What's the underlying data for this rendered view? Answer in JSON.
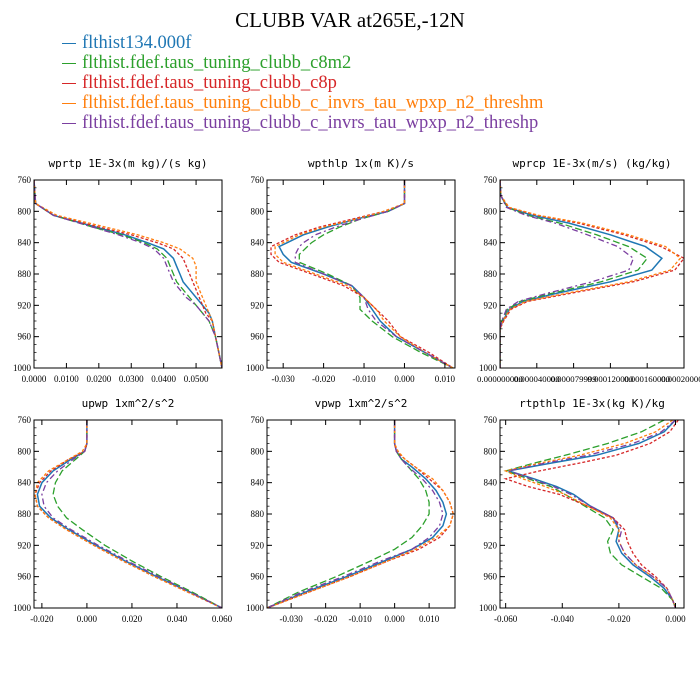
{
  "header": {
    "title": "CLUBB VAR at265E,-12N"
  },
  "legend": [
    {
      "label": "flthist134.000f",
      "color": "#1f77b4"
    },
    {
      "label": "flthist.fdef.taus_tuning_clubb_c8m2",
      "color": "#2ca02c"
    },
    {
      "label": "flthist.fdef.taus_tuning_clubb_c8p",
      "color": "#d62728"
    },
    {
      "label": "flthist.fdef.taus_tuning_clubb_c_invrs_tau_wpxp_n2_threshm",
      "color": "#ff7f0e"
    },
    {
      "label": "flthist.fdef.taus_tuning_clubb_c_invrs_tau_wpxp_n2_threshp",
      "color": "#7b3fa0"
    }
  ],
  "chart_data": [
    {
      "type": "line",
      "title": "wprtp  1E-3x(m kg)/(s kg)",
      "xlim": [
        0.0,
        0.058
      ],
      "ylim": [
        760,
        1000
      ],
      "y_inverted": true,
      "xticks": [
        "0.0000",
        "0.0100",
        "0.0200",
        "0.0300",
        "0.0400",
        "0.0500"
      ],
      "xtick_values": [
        0,
        0.01,
        0.02,
        0.03,
        0.04,
        0.05
      ],
      "yticks": [
        "760",
        "800",
        "840",
        "880",
        "920",
        "960",
        "1000"
      ],
      "y": [
        760,
        790,
        805,
        820,
        830,
        840,
        848,
        860,
        870,
        880,
        890,
        900,
        910,
        920,
        930,
        940,
        960,
        980,
        1000
      ],
      "series": [
        {
          "values": [
            0,
            0.0005,
            0.006,
            0.019,
            0.028,
            0.035,
            0.04,
            0.043,
            0.044,
            0.045,
            0.046,
            0.048,
            0.05,
            0.052,
            0.054,
            0.055,
            0.056,
            0.057,
            0.058
          ]
        },
        {
          "values": [
            0,
            0.0005,
            0.006,
            0.018,
            0.027,
            0.034,
            0.038,
            0.041,
            0.042,
            0.043,
            0.044,
            0.046,
            0.048,
            0.05,
            0.052,
            0.054,
            0.056,
            0.057,
            0.058
          ]
        },
        {
          "values": [
            0,
            0.0005,
            0.006,
            0.02,
            0.03,
            0.038,
            0.043,
            0.046,
            0.047,
            0.048,
            0.049,
            0.05,
            0.051,
            0.052,
            0.053,
            0.055,
            0.056,
            0.057,
            0.058
          ]
        },
        {
          "values": [
            0,
            0.0005,
            0.007,
            0.022,
            0.032,
            0.04,
            0.045,
            0.049,
            0.05,
            0.05,
            0.05,
            0.051,
            0.052,
            0.053,
            0.054,
            0.055,
            0.056,
            0.057,
            0.058
          ]
        },
        {
          "values": [
            0,
            0.0005,
            0.006,
            0.018,
            0.026,
            0.033,
            0.037,
            0.04,
            0.041,
            0.042,
            0.043,
            0.045,
            0.047,
            0.05,
            0.052,
            0.054,
            0.056,
            0.057,
            0.058
          ]
        }
      ]
    },
    {
      "type": "line",
      "title": "wpthlp  1x(m K)/s",
      "xlim": [
        -0.034,
        0.0125
      ],
      "ylim": [
        760,
        1000
      ],
      "y_inverted": true,
      "xticks": [
        "-0.030",
        "-0.020",
        "-0.010",
        "0.000",
        "0.010"
      ],
      "xtick_values": [
        -0.03,
        -0.02,
        -0.01,
        0,
        0.01
      ],
      "yticks": [
        "760",
        "800",
        "840",
        "880",
        "920",
        "960",
        "1000"
      ],
      "y": [
        760,
        790,
        800,
        810,
        820,
        830,
        840,
        845,
        855,
        865,
        880,
        895,
        910,
        925,
        940,
        960,
        980,
        1000
      ],
      "series": [
        {
          "values": [
            0,
            0,
            -0.004,
            -0.012,
            -0.019,
            -0.025,
            -0.029,
            -0.031,
            -0.03,
            -0.028,
            -0.02,
            -0.013,
            -0.01,
            -0.008,
            -0.006,
            -0.002,
            0.005,
            0.012
          ]
        },
        {
          "values": [
            0,
            0,
            -0.004,
            -0.011,
            -0.016,
            -0.02,
            -0.023,
            -0.024,
            -0.026,
            -0.026,
            -0.019,
            -0.013,
            -0.011,
            -0.011,
            -0.008,
            -0.003,
            0.004,
            0.012
          ]
        },
        {
          "values": [
            0,
            0,
            -0.005,
            -0.013,
            -0.021,
            -0.027,
            -0.031,
            -0.033,
            -0.033,
            -0.031,
            -0.023,
            -0.015,
            -0.01,
            -0.007,
            -0.004,
            -0.001,
            0.006,
            0.012
          ]
        },
        {
          "values": [
            0,
            0,
            -0.005,
            -0.012,
            -0.02,
            -0.026,
            -0.03,
            -0.032,
            -0.032,
            -0.03,
            -0.022,
            -0.014,
            -0.01,
            -0.007,
            -0.005,
            -0.001,
            0.005,
            0.012
          ]
        },
        {
          "values": [
            0,
            0,
            -0.004,
            -0.011,
            -0.017,
            -0.022,
            -0.025,
            -0.026,
            -0.027,
            -0.027,
            -0.02,
            -0.013,
            -0.01,
            -0.009,
            -0.007,
            -0.002,
            0.005,
            0.012
          ]
        }
      ]
    },
    {
      "type": "line",
      "title": "wprcp  1E-3x(m/s) (kg/kg)",
      "xlim": [
        0.0,
        0.0002
      ],
      "ylim": [
        760,
        1000
      ],
      "y_inverted": true,
      "xticks": [
        "0.000000000",
        "0.000040000",
        "0.000079999",
        "0.000120000",
        "0.000160000",
        "0.000200000"
      ],
      "xtick_values": [
        0,
        4e-05,
        8e-05,
        0.00012,
        0.00016,
        0.0002
      ],
      "yticks": [
        "760",
        "800",
        "840",
        "880",
        "920",
        "960",
        "1000"
      ],
      "y": [
        760,
        780,
        795,
        805,
        815,
        830,
        845,
        860,
        875,
        890,
        905,
        915,
        925,
        940,
        950,
        1000
      ],
      "series": [
        {
          "values": [
            0,
            1e-06,
            8e-06,
            3.5e-05,
            7.5e-05,
            0.00012,
            0.000158,
            0.000176,
            0.000165,
            0.00012,
            6e-05,
            2.5e-05,
            1e-05,
            3e-06,
            0,
            0
          ]
        },
        {
          "values": [
            0,
            1e-06,
            8e-06,
            3e-05,
            6.5e-05,
            0.000105,
            0.00014,
            0.00016,
            0.00015,
            0.00011,
            5.5e-05,
            2.2e-05,
            8e-06,
            2e-06,
            0,
            0
          ]
        },
        {
          "values": [
            0,
            1e-06,
            9e-06,
            4e-05,
            8.5e-05,
            0.000135,
            0.000175,
            0.0002,
            0.00019,
            0.000145,
            7.5e-05,
            3e-05,
            1.2e-05,
            4e-06,
            0,
            0
          ]
        },
        {
          "values": [
            0,
            1e-06,
            1e-05,
            4.2e-05,
            9e-05,
            0.00014,
            0.00018,
            0.000196,
            0.000185,
            0.00014,
            7e-05,
            2.8e-05,
            1.1e-05,
            3e-06,
            0,
            0
          ]
        },
        {
          "values": [
            0,
            1e-06,
            7e-06,
            2.8e-05,
            6e-05,
            9.5e-05,
            0.000128,
            0.000145,
            0.00014,
            0.0001,
            5e-05,
            2e-05,
            7e-06,
            2e-06,
            0,
            0
          ]
        }
      ]
    },
    {
      "type": "line",
      "title": "upwp  1xm^2/s^2",
      "xlim": [
        -0.0235,
        0.06
      ],
      "ylim": [
        760,
        1000
      ],
      "y_inverted": true,
      "xticks": [
        "-0.020",
        "0.000",
        "0.020",
        "0.040",
        "0.060"
      ],
      "xtick_values": [
        -0.02,
        0,
        0.02,
        0.04,
        0.06
      ],
      "yticks": [
        "760",
        "800",
        "840",
        "880",
        "920",
        "960",
        "1000"
      ],
      "y": [
        760,
        790,
        800,
        810,
        825,
        840,
        855,
        870,
        885,
        900,
        920,
        940,
        960,
        980,
        1000
      ],
      "series": [
        {
          "values": [
            0,
            0,
            -0.001,
            -0.007,
            -0.015,
            -0.02,
            -0.022,
            -0.021,
            -0.016,
            -0.008,
            0.004,
            0.017,
            0.031,
            0.046,
            0.06
          ]
        },
        {
          "values": [
            0,
            0,
            -0.001,
            -0.005,
            -0.011,
            -0.014,
            -0.015,
            -0.013,
            -0.009,
            -0.002,
            0.008,
            0.02,
            0.033,
            0.047,
            0.06
          ]
        },
        {
          "values": [
            0,
            0,
            -0.001,
            -0.008,
            -0.016,
            -0.021,
            -0.023,
            -0.022,
            -0.017,
            -0.009,
            0.003,
            0.016,
            0.03,
            0.045,
            0.06
          ]
        },
        {
          "values": [
            0,
            0,
            -0.002,
            -0.008,
            -0.017,
            -0.022,
            -0.023,
            -0.022,
            -0.017,
            -0.009,
            0.003,
            0.016,
            0.03,
            0.045,
            0.06
          ]
        },
        {
          "values": [
            0,
            0,
            -0.001,
            -0.006,
            -0.013,
            -0.018,
            -0.02,
            -0.019,
            -0.015,
            -0.007,
            0.005,
            0.018,
            0.032,
            0.046,
            0.06
          ]
        }
      ]
    },
    {
      "type": "line",
      "title": "vpwp  1xm^2/s^2",
      "xlim": [
        -0.037,
        0.0175
      ],
      "ylim": [
        760,
        1000
      ],
      "y_inverted": true,
      "xticks": [
        "-0.030",
        "-0.020",
        "-0.010",
        "0.000",
        "0.010"
      ],
      "xtick_values": [
        -0.03,
        -0.02,
        -0.01,
        0,
        0.01
      ],
      "yticks": [
        "760",
        "800",
        "840",
        "880",
        "920",
        "960",
        "1000"
      ],
      "y": [
        760,
        790,
        800,
        810,
        820,
        835,
        850,
        865,
        880,
        895,
        910,
        925,
        940,
        960,
        980,
        1000
      ],
      "series": [
        {
          "values": [
            0,
            0,
            0.0005,
            0.002,
            0.005,
            0.009,
            0.012,
            0.014,
            0.015,
            0.014,
            0.011,
            0.005,
            -0.003,
            -0.014,
            -0.026,
            -0.037
          ]
        },
        {
          "values": [
            0,
            0,
            0.0005,
            0.002,
            0.004,
            0.007,
            0.009,
            0.01,
            0.01,
            0.008,
            0.005,
            0.0,
            -0.007,
            -0.017,
            -0.028,
            -0.037
          ]
        },
        {
          "values": [
            0,
            0,
            0.0005,
            0.003,
            0.006,
            0.01,
            0.014,
            0.016,
            0.017,
            0.016,
            0.013,
            0.007,
            -0.002,
            -0.013,
            -0.025,
            -0.037
          ]
        },
        {
          "values": [
            0,
            0,
            0.001,
            0.003,
            0.006,
            0.011,
            0.014,
            0.016,
            0.017,
            0.016,
            0.012,
            0.006,
            -0.002,
            -0.013,
            -0.025,
            -0.037
          ]
        },
        {
          "values": [
            0,
            0,
            0.0005,
            0.002,
            0.004,
            0.008,
            0.011,
            0.013,
            0.014,
            0.013,
            0.01,
            0.005,
            -0.004,
            -0.015,
            -0.027,
            -0.037
          ]
        }
      ]
    },
    {
      "type": "line",
      "title": "rtpthlp  1E-3x(kg K)/kg",
      "xlim": [
        -0.062,
        0.003
      ],
      "ylim": [
        760,
        1000
      ],
      "y_inverted": true,
      "xticks": [
        "-0.060",
        "-0.040",
        "-0.020",
        "0.000"
      ],
      "xtick_values": [
        -0.06,
        -0.04,
        -0.02,
        0
      ],
      "yticks": [
        "760",
        "800",
        "840",
        "880",
        "920",
        "960",
        "1000"
      ],
      "y": [
        760,
        775,
        790,
        805,
        815,
        825,
        835,
        845,
        855,
        870,
        885,
        900,
        915,
        930,
        945,
        960,
        975,
        990,
        1000
      ],
      "series": [
        {
          "values": [
            0,
            -0.004,
            -0.013,
            -0.028,
            -0.044,
            -0.059,
            -0.05,
            -0.042,
            -0.036,
            -0.03,
            -0.022,
            -0.02,
            -0.021,
            -0.019,
            -0.015,
            -0.009,
            -0.004,
            -0.001,
            0
          ]
        },
        {
          "values": [
            -0.004,
            -0.012,
            -0.024,
            -0.039,
            -0.05,
            -0.06,
            -0.052,
            -0.044,
            -0.039,
            -0.032,
            -0.025,
            -0.022,
            -0.024,
            -0.023,
            -0.019,
            -0.012,
            -0.005,
            -0.001,
            0
          ]
        },
        {
          "values": [
            0.001,
            -0.002,
            -0.009,
            -0.021,
            -0.034,
            -0.048,
            -0.06,
            -0.052,
            -0.041,
            -0.031,
            -0.022,
            -0.018,
            -0.017,
            -0.015,
            -0.012,
            -0.007,
            -0.003,
            -0.001,
            0
          ]
        },
        {
          "values": [
            -0.001,
            -0.007,
            -0.018,
            -0.034,
            -0.048,
            -0.06,
            -0.054,
            -0.046,
            -0.039,
            -0.031,
            -0.023,
            -0.02,
            -0.02,
            -0.018,
            -0.014,
            -0.008,
            -0.003,
            -0.001,
            0
          ]
        },
        {
          "values": [
            0,
            -0.005,
            -0.015,
            -0.031,
            -0.046,
            -0.059,
            -0.051,
            -0.043,
            -0.037,
            -0.03,
            -0.022,
            -0.019,
            -0.02,
            -0.018,
            -0.014,
            -0.008,
            -0.003,
            -0.001,
            0
          ]
        }
      ]
    }
  ]
}
